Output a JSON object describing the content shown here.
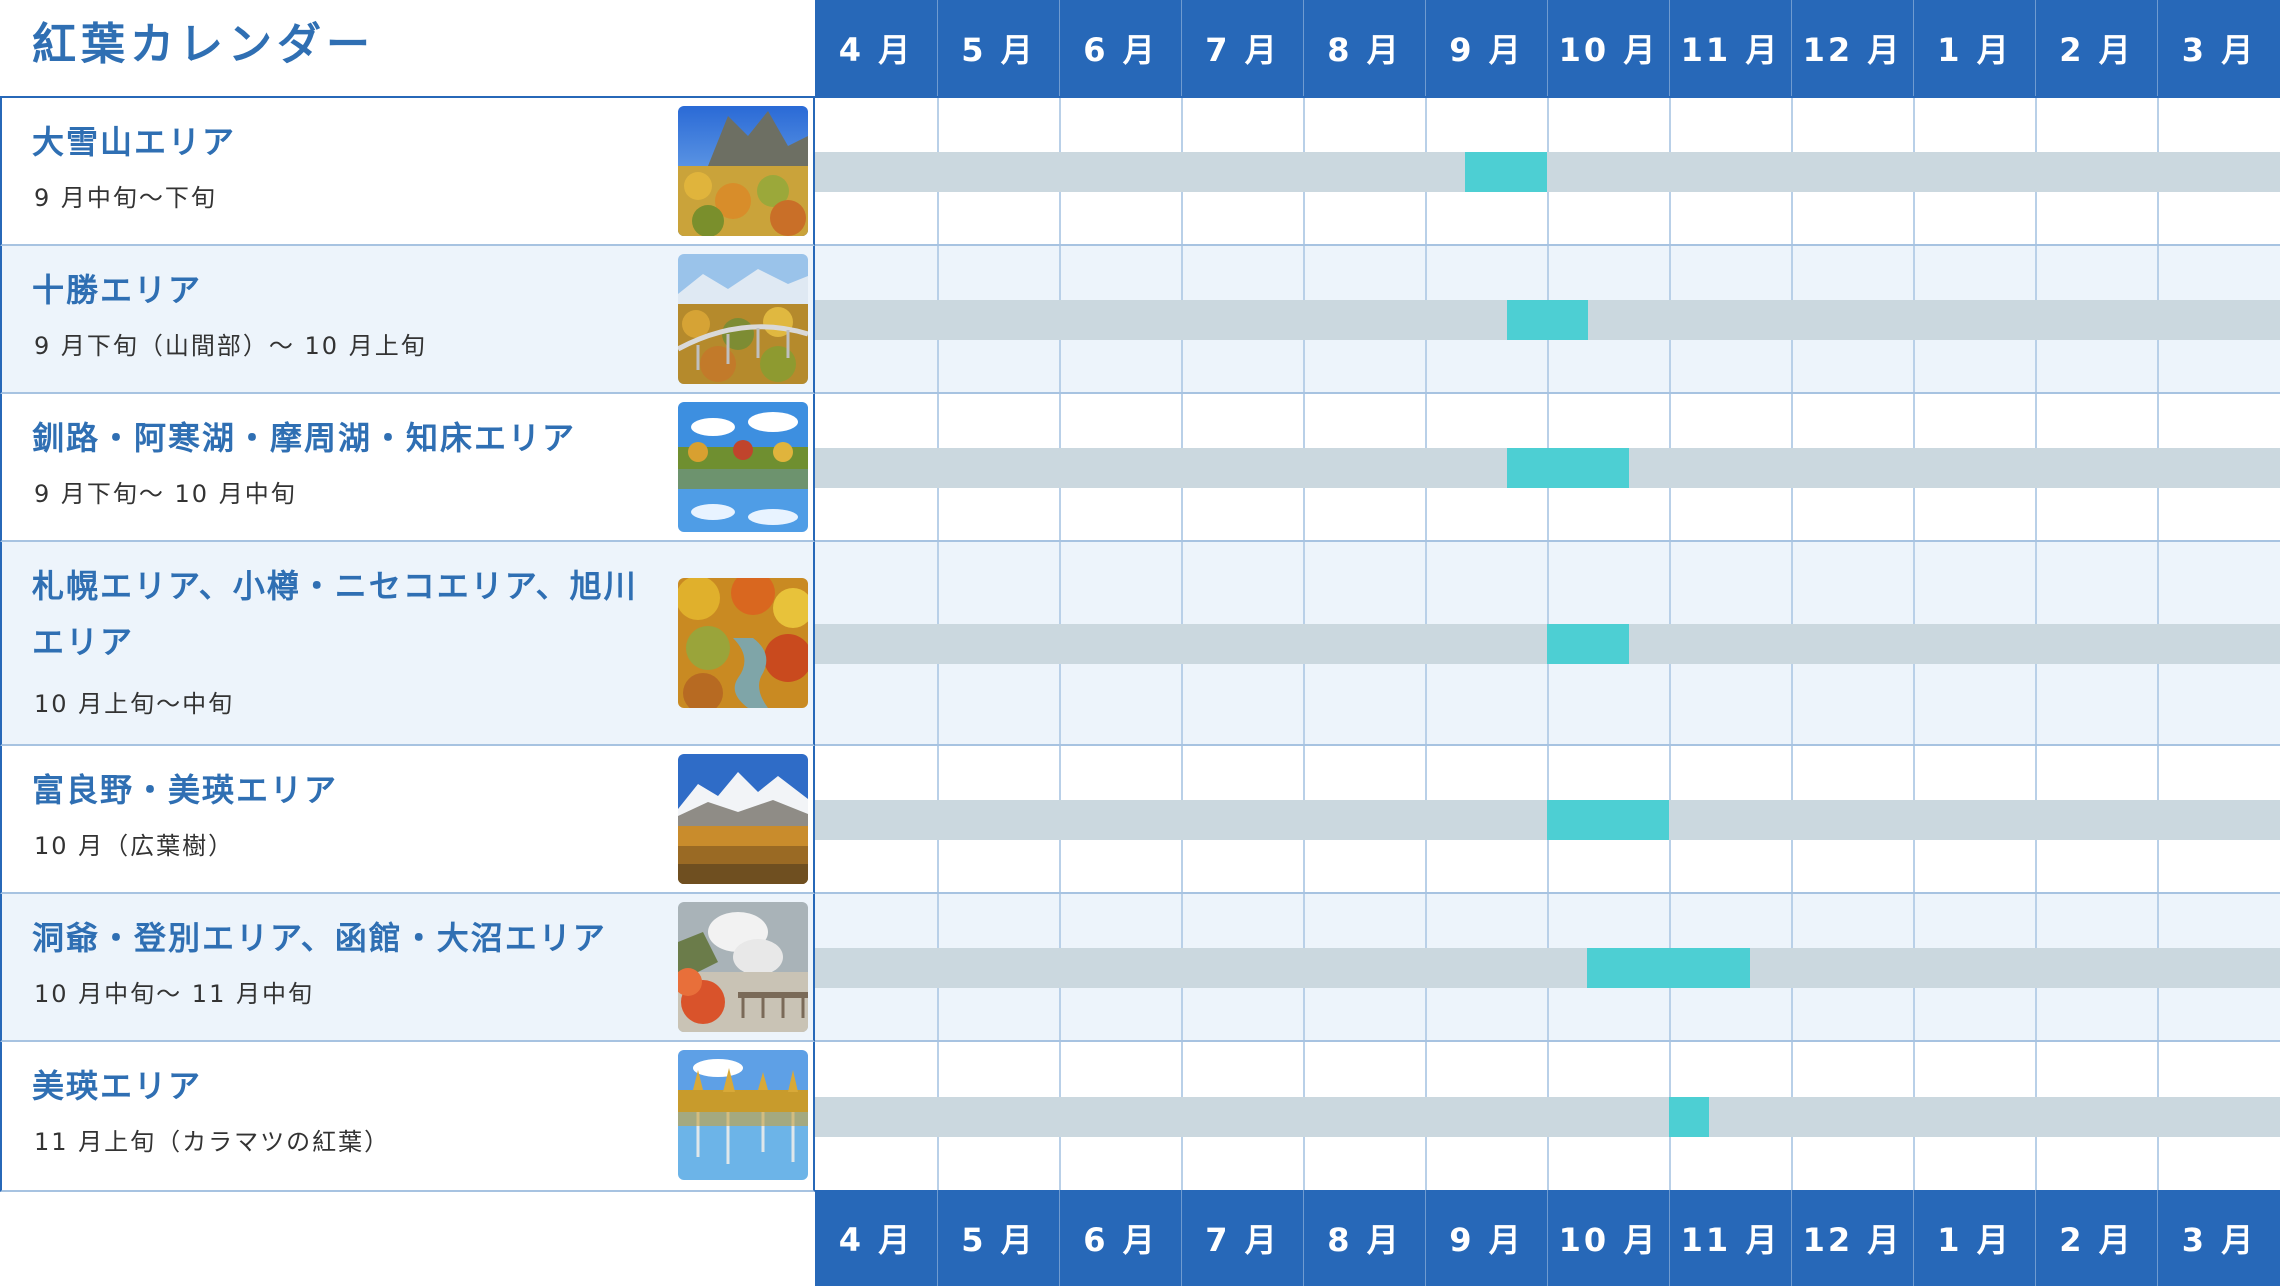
{
  "title": "紅葉カレンダー",
  "months": [
    "4 月",
    "5 月",
    "6 月",
    "7 月",
    "8 月",
    "9 月",
    "10 月",
    "11 月",
    "12 月",
    "1 月",
    "2 月",
    "3 月"
  ],
  "colors": {
    "header": "#2768b8",
    "title": "#2f6fb3",
    "track": "#cbd8df",
    "highlight": "#4dcfd3",
    "row_alt": "#edf4fb"
  },
  "areas": [
    {
      "name": "大雪山エリア",
      "period": "9 月中旬～下旬",
      "photo": "mountain-autumn-photo",
      "peak": {
        "start_month": 9,
        "start_fraction": 0.33,
        "end_month": 9,
        "end_fraction": 1.0
      }
    },
    {
      "name": "十勝エリア",
      "period": "9 月下旬（山間部）～ 10 月上旬",
      "photo": "bridge-forest-photo",
      "peak": {
        "start_month": 9,
        "start_fraction": 0.67,
        "end_month": 10,
        "end_fraction": 0.33
      }
    },
    {
      "name": "釧路・阿寒湖・摩周湖・知床エリア",
      "period": "9 月下旬～ 10 月中旬",
      "photo": "lake-reflection-photo",
      "peak": {
        "start_month": 9,
        "start_fraction": 0.67,
        "end_month": 10,
        "end_fraction": 0.67
      }
    },
    {
      "name": "札幌エリア、小樽・ニセコエリア、旭川エリア",
      "period": "10 月上旬～中旬",
      "photo": "gorge-river-photo",
      "peak": {
        "start_month": 10,
        "start_fraction": 0.0,
        "end_month": 10,
        "end_fraction": 0.67
      }
    },
    {
      "name": "富良野・美瑛エリア",
      "period": "10 月（広葉樹）",
      "photo": "snow-mountain-forest-photo",
      "peak": {
        "start_month": 10,
        "start_fraction": 0.0,
        "end_month": 10,
        "end_fraction": 1.0
      }
    },
    {
      "name": "洞爺・登別エリア、函館・大沼エリア",
      "period": "10 月中旬～ 11 月中旬",
      "photo": "hot-spring-valley-photo",
      "peak": {
        "start_month": 10,
        "start_fraction": 0.33,
        "end_month": 11,
        "end_fraction": 0.67
      }
    },
    {
      "name": "美瑛エリア",
      "period": "11 月上旬（カラマツの紅葉）",
      "photo": "larch-blue-pond-photo",
      "peak": {
        "start_month": 11,
        "start_fraction": 0.0,
        "end_month": 11,
        "end_fraction": 0.33
      }
    }
  ]
}
